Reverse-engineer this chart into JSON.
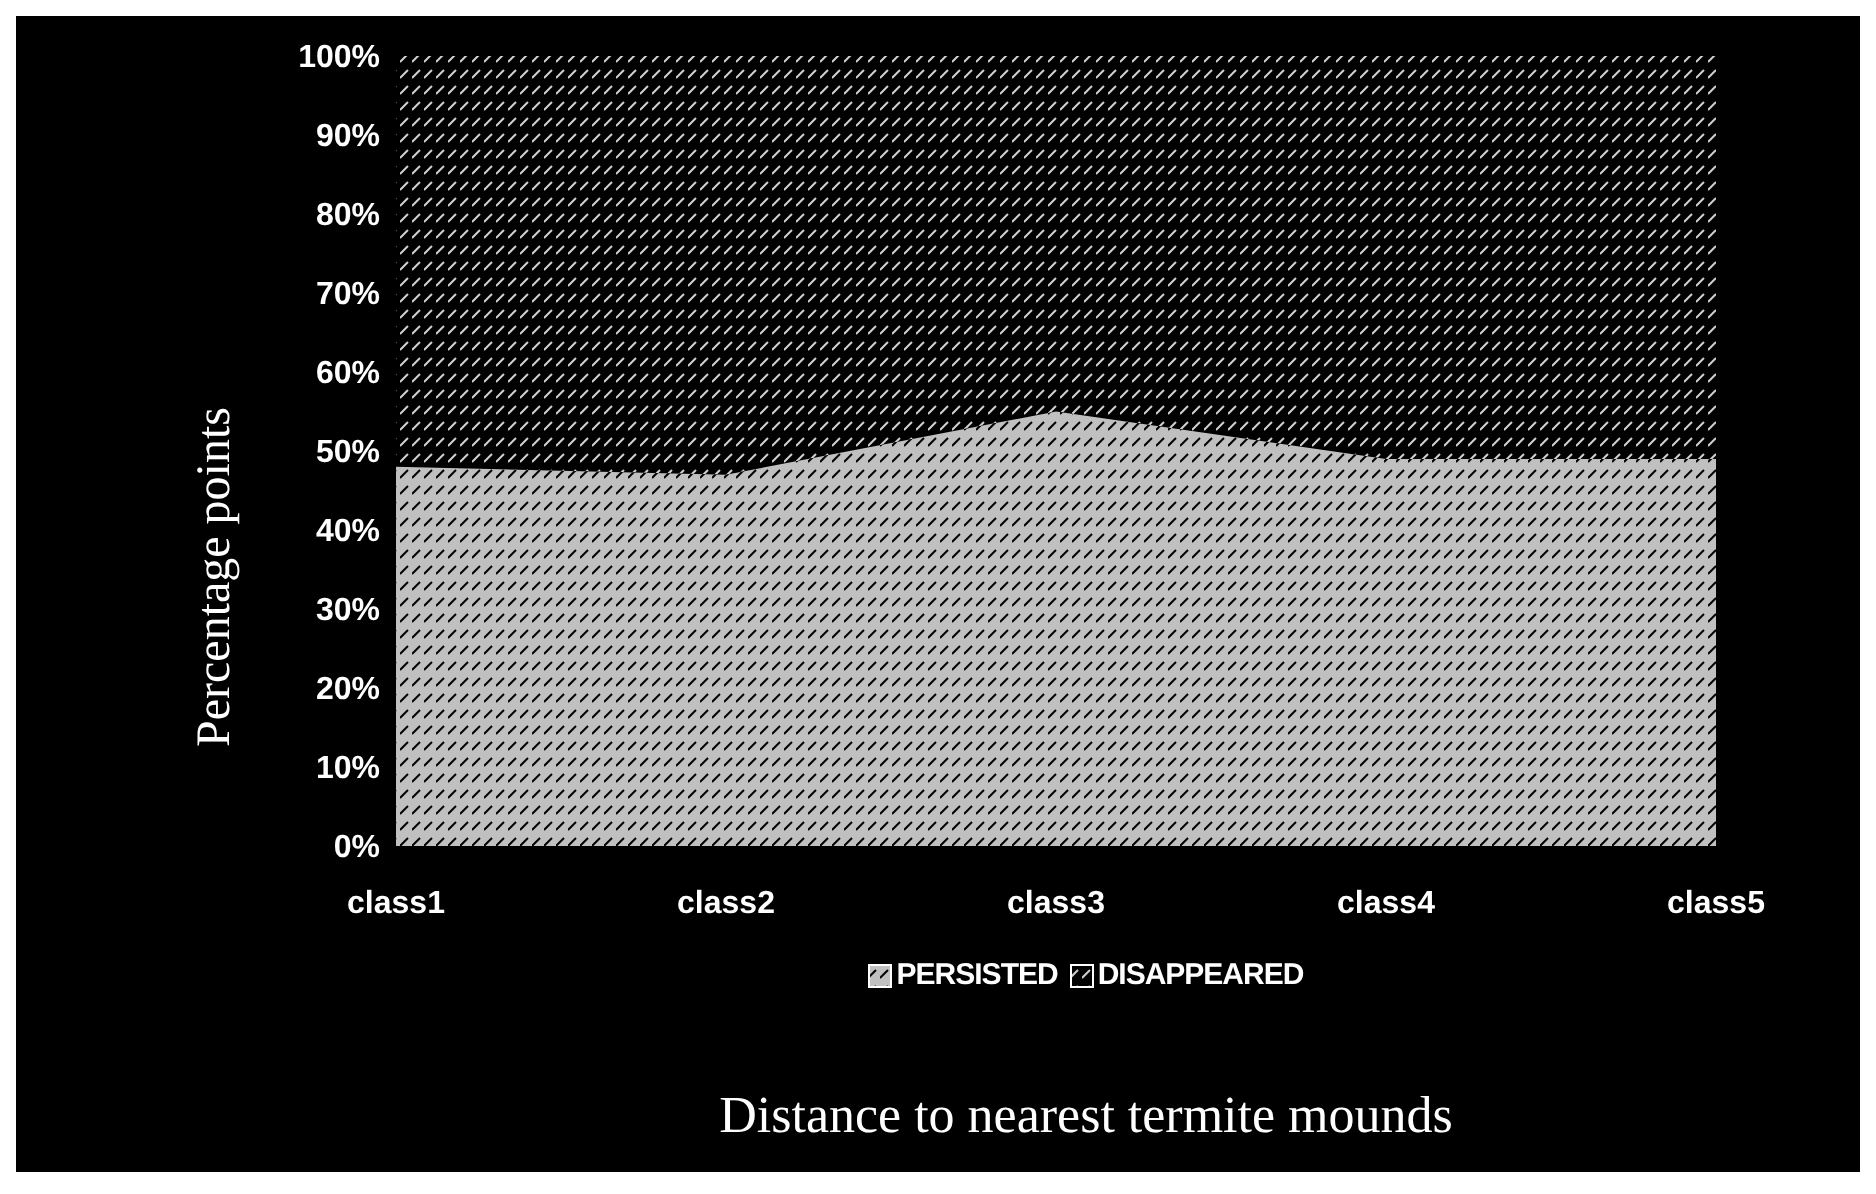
{
  "chart_data": {
    "type": "area",
    "stacked": true,
    "xlabel": "Distance to nearest termite mounds",
    "ylabel": "Percentage points",
    "categories": [
      "class1",
      "class2",
      "class3",
      "class4",
      "class5"
    ],
    "series": [
      {
        "name": "PERSISTED",
        "color": "#c0c0c0",
        "values": [
          48,
          47,
          55,
          49,
          49
        ]
      },
      {
        "name": "DISAPPEARED",
        "color": "#000000",
        "values": [
          52,
          53,
          45,
          51,
          51
        ]
      }
    ],
    "ylim": [
      0,
      100
    ],
    "yticks": [
      {
        "value": 0,
        "label": "0%"
      },
      {
        "value": 10,
        "label": "10%"
      },
      {
        "value": 20,
        "label": "20%"
      },
      {
        "value": 30,
        "label": "30%"
      },
      {
        "value": 40,
        "label": "40%"
      },
      {
        "value": 50,
        "label": "50%"
      },
      {
        "value": 60,
        "label": "60%"
      },
      {
        "value": 70,
        "label": "70%"
      },
      {
        "value": 80,
        "label": "80%"
      },
      {
        "value": 90,
        "label": "90%"
      },
      {
        "value": 100,
        "label": "100%"
      }
    ],
    "grid": false,
    "legend": "bottom"
  }
}
